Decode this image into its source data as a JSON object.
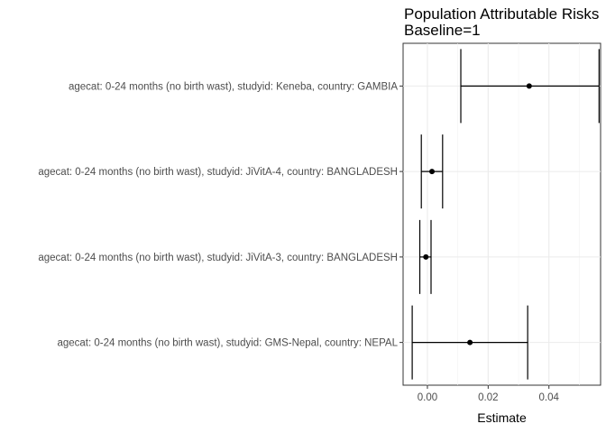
{
  "chart_data": {
    "type": "forest",
    "title_lines": [
      "Population Attributable Risks",
      "Baseline=1"
    ],
    "xlabel": "Estimate",
    "ylabel": "",
    "xlim": [
      -0.008,
      0.057
    ],
    "xticks": [
      0.0,
      0.02,
      0.04
    ],
    "xtick_labels": [
      "0.00",
      "0.02",
      "0.04"
    ],
    "grid": true,
    "rows": [
      {
        "label": "agecat: 0-24 months (no birth wast), studyid: Keneba, country: GAMBIA",
        "estimate": 0.0335,
        "lower": 0.011,
        "upper": 0.0565
      },
      {
        "label": "agecat: 0-24 months (no birth wast), studyid: JiVitA-4, country: BANGLADESH",
        "estimate": 0.0015,
        "lower": -0.002,
        "upper": 0.005
      },
      {
        "label": "agecat: 0-24 months (no birth wast), studyid: JiVitA-3, country: BANGLADESH",
        "estimate": -0.0005,
        "lower": -0.0025,
        "upper": 0.0012
      },
      {
        "label": "agecat: 0-24 months (no birth wast), studyid: GMS-Nepal, country: NEPAL",
        "estimate": 0.014,
        "lower": -0.005,
        "upper": 0.033
      }
    ]
  }
}
